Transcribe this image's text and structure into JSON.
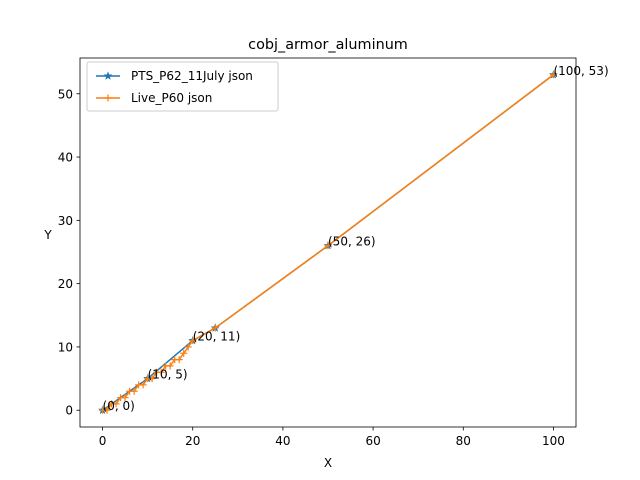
{
  "chart_data": {
    "type": "line",
    "title": "cobj_armor_aluminum",
    "xlabel": "X",
    "ylabel": "Y",
    "xlim": [
      -5,
      105
    ],
    "ylim": [
      -2.65,
      55.65
    ],
    "xticks": [
      0,
      20,
      40,
      60,
      80,
      100
    ],
    "yticks": [
      0,
      10,
      20,
      30,
      40,
      50
    ],
    "grid": false,
    "legend_position": "top-left",
    "series": [
      {
        "name": "PTS_P62_11July json",
        "marker": "star",
        "color": "#1f77b4",
        "x": [
          0,
          10,
          20,
          25,
          50,
          100
        ],
        "y": [
          0,
          5,
          11,
          13,
          26,
          53
        ]
      },
      {
        "name": "Live_P60 json",
        "marker": "plus",
        "color": "#ff7f0e",
        "x": [
          0,
          1,
          2,
          3,
          4,
          5,
          6,
          7,
          8,
          9,
          10,
          11,
          12,
          13,
          14,
          15,
          16,
          17,
          18,
          19,
          20,
          25,
          50,
          100
        ],
        "y": [
          0,
          0,
          1,
          1,
          2,
          2,
          3,
          3,
          4,
          4,
          5,
          5,
          6,
          6,
          7,
          7,
          8,
          8,
          9,
          10,
          11,
          13,
          26,
          53
        ]
      }
    ],
    "annotations": [
      {
        "x": 0,
        "y": 0,
        "text": "(0, 0)"
      },
      {
        "x": 10,
        "y": 5,
        "text": "(10, 5)"
      },
      {
        "x": 20,
        "y": 11,
        "text": "(20, 11)"
      },
      {
        "x": 50,
        "y": 26,
        "text": "(50, 26)"
      },
      {
        "x": 100,
        "y": 53,
        "text": "(100, 53)"
      }
    ]
  }
}
